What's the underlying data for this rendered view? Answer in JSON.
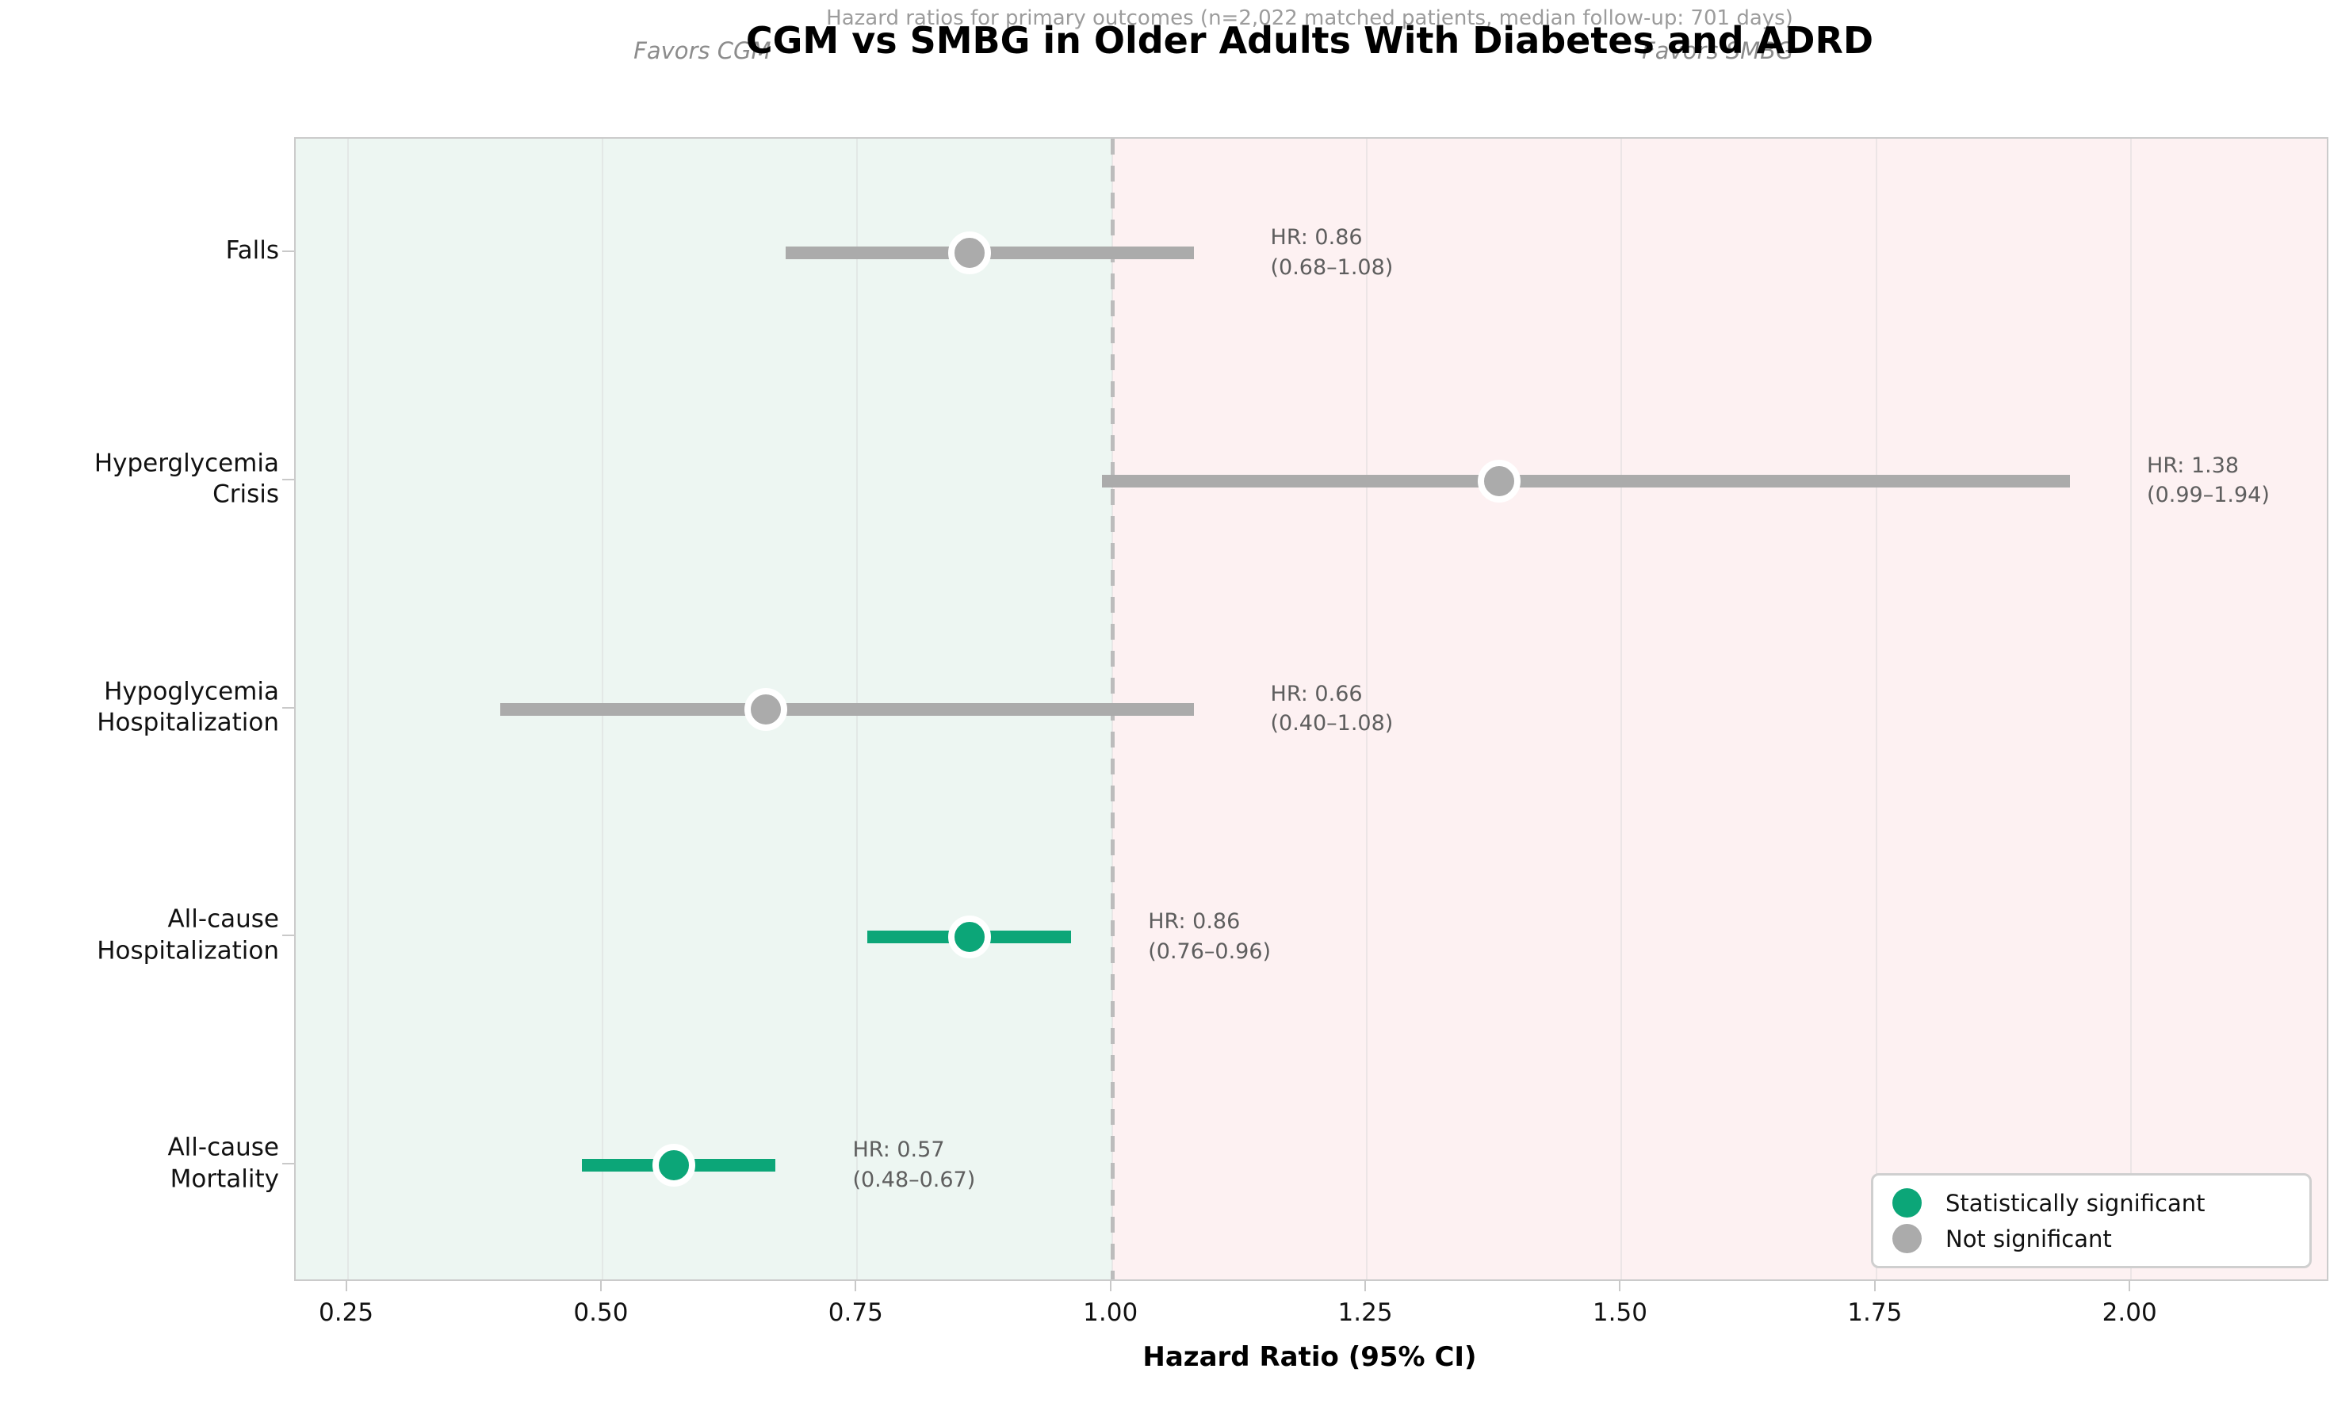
{
  "chart_data": {
    "type": "forest",
    "title": "CGM vs SMBG in Older Adults With Diabetes and ADRD",
    "subtitle": "Hazard ratios for primary outcomes (n=2,022 matched patients, median follow-up: 701 days)",
    "xlabel": "Hazard Ratio (95% CI)",
    "favors_left": "Favors CGM",
    "favors_right": "Favors SMBG",
    "x_ticks": [
      "0.25",
      "0.50",
      "0.75",
      "1.00",
      "1.25",
      "1.50",
      "1.75",
      "2.00"
    ],
    "x_tick_values": [
      0.25,
      0.5,
      0.75,
      1.0,
      1.25,
      1.5,
      1.75,
      2.0
    ],
    "xlim": [
      0.199,
      2.192
    ],
    "reference_line": 1.0,
    "grid": true,
    "legend_position": "lower right",
    "outcomes": [
      {
        "label": "Falls",
        "label_lines": [
          "Falls"
        ],
        "hr": 0.86,
        "ci_low": 0.68,
        "ci_high": 1.08,
        "significant": false,
        "hr_text": "HR: 0.86",
        "ci_text": "(0.68–1.08)"
      },
      {
        "label": "Hyperglycemia Crisis",
        "label_lines": [
          "Hyperglycemia",
          "Crisis"
        ],
        "hr": 1.38,
        "ci_low": 0.99,
        "ci_high": 1.94,
        "significant": false,
        "hr_text": "HR: 1.38",
        "ci_text": "(0.99–1.94)"
      },
      {
        "label": "Hypoglycemia Hospitalization",
        "label_lines": [
          "Hypoglycemia",
          "Hospitalization"
        ],
        "hr": 0.66,
        "ci_low": 0.4,
        "ci_high": 1.08,
        "significant": false,
        "hr_text": "HR: 0.66",
        "ci_text": "(0.40–1.08)"
      },
      {
        "label": "All-cause Hospitalization",
        "label_lines": [
          "All-cause",
          "Hospitalization"
        ],
        "hr": 0.86,
        "ci_low": 0.76,
        "ci_high": 0.96,
        "significant": true,
        "hr_text": "HR: 0.86",
        "ci_text": "(0.76–0.96)"
      },
      {
        "label": "All-cause Mortality",
        "label_lines": [
          "All-cause",
          "Mortality"
        ],
        "hr": 0.57,
        "ci_low": 0.48,
        "ci_high": 0.67,
        "significant": true,
        "hr_text": "HR: 0.57",
        "ci_text": "(0.48–0.67)"
      }
    ],
    "legend": [
      {
        "label": "Statistically significant",
        "color": "#0ca678"
      },
      {
        "label": "Not significant",
        "color": "#ababab"
      }
    ],
    "colors": {
      "significant": "#0ca678",
      "not_significant": "#ababab",
      "left_region": "#edf6f2",
      "right_region": "#fdf1f2",
      "reference_line": "#bcbcbc",
      "annotation_text": "#5e5e5e"
    }
  }
}
